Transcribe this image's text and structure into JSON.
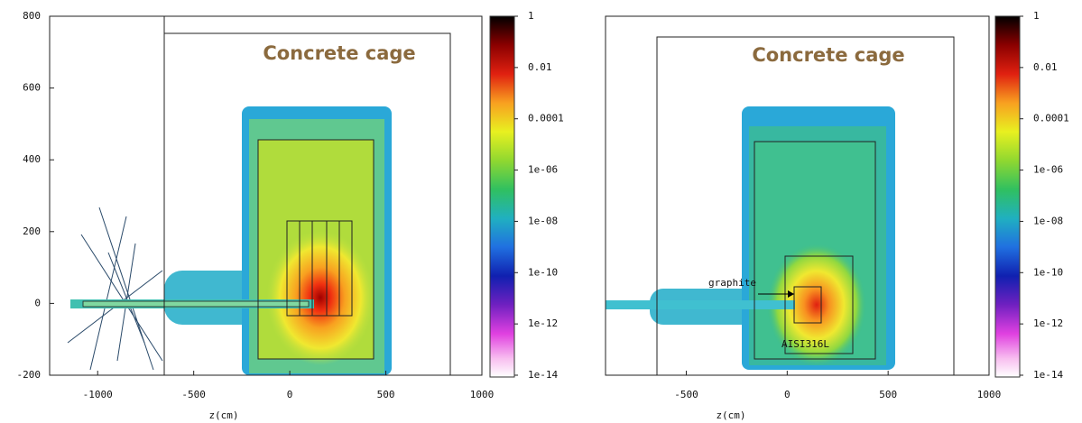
{
  "chart_data": [
    {
      "type": "heatmap",
      "annotations": [
        "Concrete cage"
      ],
      "xlabel": "z(cm)",
      "xlim": [
        -1250,
        1000
      ],
      "xticks": [
        -1000,
        -500,
        0,
        500,
        1000
      ],
      "ylim": [
        -200,
        800
      ],
      "yticks": [
        -200,
        0,
        200,
        400,
        600,
        800
      ],
      "colorbar": {
        "scale": "log",
        "lim": [
          1e-14,
          1
        ],
        "ticks": [
          1,
          0.01,
          0.0001,
          {
            "value": 1e-06,
            "label": "1e-06"
          },
          {
            "value": 1e-08,
            "label": "1e-08"
          },
          1e-10,
          1e-12,
          1e-14
        ]
      }
    },
    {
      "type": "heatmap",
      "annotations": [
        "Concrete cage",
        "graphite",
        "AISI316L"
      ],
      "xlabel": "z(cm)",
      "xlim": [
        -900,
        1000
      ],
      "xticks": [
        -500,
        0,
        500,
        1000
      ],
      "ylim": [
        -200,
        800
      ],
      "colorbar": {
        "scale": "log",
        "lim": [
          1e-14,
          1
        ],
        "ticks": [
          1,
          0.01,
          0.0001,
          {
            "value": 1e-06,
            "label": "1e-06"
          },
          {
            "value": 1e-08,
            "label": "1e-08"
          },
          1e-10,
          1e-12,
          1e-14
        ]
      }
    }
  ]
}
